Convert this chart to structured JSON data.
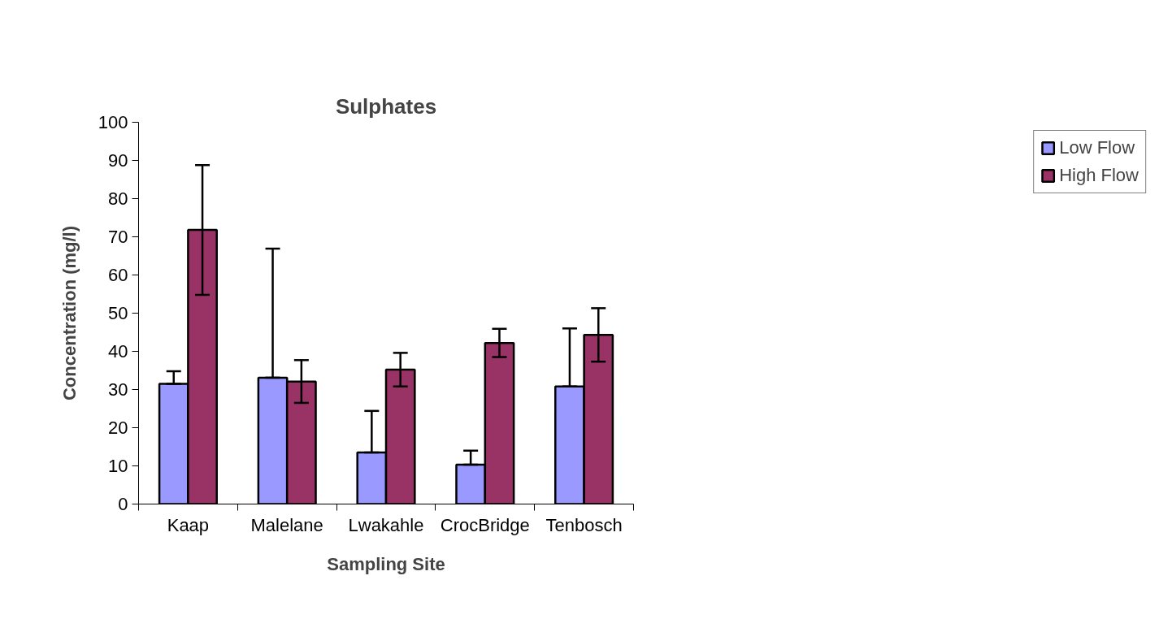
{
  "chart_data": {
    "type": "bar",
    "title": "Sulphates",
    "xlabel": "Sampling Site",
    "ylabel": "Concentration (mg/l)",
    "categories": [
      "Kaap",
      "Malelane",
      "Lwakahle",
      "CrocBridge",
      "Tenbosch"
    ],
    "series": [
      {
        "name": "Low Flow",
        "color": "#9999ff",
        "values": [
          31.5,
          33.1,
          13.5,
          10.3,
          30.8
        ],
        "errors": [
          [
            31.5,
            34.8
          ],
          [
            33.1,
            66.9
          ],
          [
            13.5,
            24.4
          ],
          [
            10.3,
            14.0
          ],
          [
            30.8,
            46.0
          ]
        ]
      },
      {
        "name": "High Flow",
        "color": "#993366",
        "values": [
          71.8,
          32.1,
          35.2,
          42.2,
          44.3
        ],
        "errors": [
          17,
          5.6,
          4.4,
          3.7,
          7
        ]
      }
    ],
    "ylim": [
      0,
      100
    ],
    "yticks": [
      0,
      10,
      20,
      30,
      40,
      50,
      60,
      70,
      80,
      90,
      100
    ],
    "grid": false,
    "legend": "right"
  }
}
